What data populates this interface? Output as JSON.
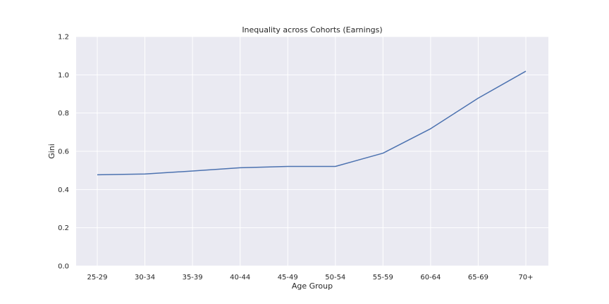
{
  "chart_data": {
    "type": "line",
    "title": "Inequality across Cohorts (Earnings)",
    "xlabel": "Age Group",
    "ylabel": "Gini",
    "categories": [
      "25-29",
      "30-34",
      "35-39",
      "40-44",
      "45-49",
      "50-54",
      "55-59",
      "60-64",
      "65-69",
      "70+"
    ],
    "series": [
      {
        "values": [
          0.477,
          0.481,
          0.497,
          0.514,
          0.521,
          0.521,
          0.59,
          0.718,
          0.878,
          1.019
        ],
        "color": "#4c72b0"
      }
    ],
    "ylim": [
      0.0,
      1.2
    ],
    "yticks": [
      "0.0",
      "0.2",
      "0.4",
      "0.6",
      "0.8",
      "1.0",
      "1.2"
    ],
    "grid": true,
    "background": "#eaeaf2",
    "grid_color": "#ffffff"
  }
}
